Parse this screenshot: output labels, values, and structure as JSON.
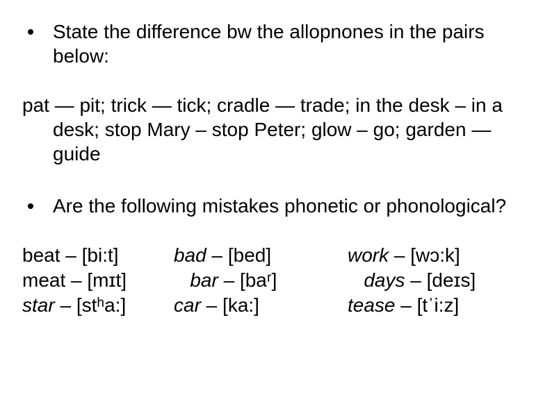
{
  "bullets": {
    "b1": "State the difference bw the allopnones in the pairs below:",
    "b2": "Are the following mistakes phonetic or phonological?"
  },
  "para1": "pat — pit; trick — tick; cradle — trade; in the desk – in a desk; stop Mary – stop Peter; glow – go; garden — guide",
  "examples": {
    "r1c1a": "beat – [bi:t]",
    "r1c2a_i": "bad",
    "r1c2a_r": " – [bed]",
    "r1c3a_i": "work",
    "r1c3a_r": " – [wɔ:k]",
    "r2c1a": "meat – [mɪt]",
    "r2c2a_i": "bar",
    "r2c2a_r": " – [baʳ]",
    "r2c3a_i": "days",
    "r2c3a_r": " – [deɪs]",
    "r3c1a_i": "star",
    "r3c1a_r": " – [stʰa:]",
    "r3c2a_i": "car",
    "r3c2a_r": " – [ka:]",
    "r3c3a_i": "tease",
    "r3c3a_r": " – [tˈi:z]"
  },
  "colors": {
    "text": "#000000",
    "background": "#ffffff"
  },
  "fonts": {
    "body_size_pt": 21,
    "family": "Arial"
  }
}
